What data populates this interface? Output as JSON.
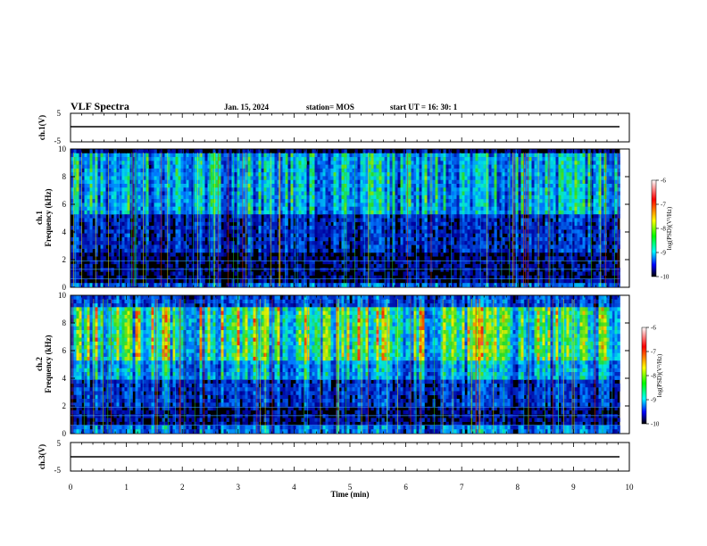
{
  "header": {
    "title": "VLF Spectra",
    "date": "Jan. 15, 2024",
    "station": "station= MOS",
    "start": "start UT =  16: 30: 1"
  },
  "chart_data": [
    {
      "type": "line",
      "panel": "ch1 waveform",
      "ylabel": "ch.1(V)",
      "ylim": [
        -5,
        5
      ],
      "yticks": [
        "5",
        "-5"
      ],
      "x": [
        0,
        1,
        2,
        3,
        4,
        5,
        6,
        7,
        8,
        9,
        9.8
      ],
      "values": [
        -1.2,
        -1.2,
        -1.2,
        -1.2,
        -1.2,
        -1.2,
        -1.2,
        -1.2,
        -1.2,
        -1.2,
        -1.2
      ]
    },
    {
      "type": "heatmap",
      "panel": "ch1 spectrogram",
      "ylabel_ch": "ch.1",
      "ylabel": "Frequency (kHz)",
      "ylim": [
        0,
        10
      ],
      "yticks": [
        "0",
        "2",
        "4",
        "6",
        "8",
        "10"
      ],
      "xlim": [
        0,
        10
      ],
      "colorbar": {
        "label": "log(PSD)(V²/Hz)",
        "ticks": [
          "-6",
          "-7",
          "-8",
          "-9",
          "-10"
        ],
        "range": [
          -10,
          -6
        ]
      }
    },
    {
      "type": "heatmap",
      "panel": "ch2 spectrogram",
      "ylabel_ch": "ch.2",
      "ylabel": "Frequency (kHz)",
      "ylim": [
        0,
        10
      ],
      "yticks": [
        "0",
        "2",
        "4",
        "6",
        "8",
        "10"
      ],
      "xlim": [
        0,
        10
      ],
      "colorbar": {
        "label": "log(PSD)(V²/Hz)",
        "ticks": [
          "-6",
          "-7",
          "-8",
          "-9",
          "-10"
        ],
        "range": [
          -10,
          -6
        ]
      }
    },
    {
      "type": "line",
      "panel": "ch3 waveform",
      "ylabel": "ch.3(V)",
      "ylim": [
        -5,
        5
      ],
      "yticks": [
        "5",
        "-5"
      ],
      "xlabel": "Time (min)",
      "xlim": [
        0,
        10
      ],
      "xticks": [
        "0",
        "1",
        "2",
        "3",
        "4",
        "5",
        "6",
        "7",
        "8",
        "9",
        "10"
      ],
      "x": [
        0,
        1,
        2,
        3,
        4,
        5,
        6,
        7,
        8,
        9,
        9.8
      ],
      "values": [
        -1.1,
        -1.1,
        -1.1,
        -1.1,
        -1.1,
        -1.1,
        -1.1,
        -1.1,
        -1.1,
        -1.1,
        -1.1
      ]
    }
  ],
  "colors": {
    "black": "#000000",
    "blue": "#0000ff",
    "cyan": "#00c8ff",
    "green": "#22dd22",
    "yellow": "#eeee00",
    "red": "#ee0000",
    "white": "#ffffff"
  }
}
